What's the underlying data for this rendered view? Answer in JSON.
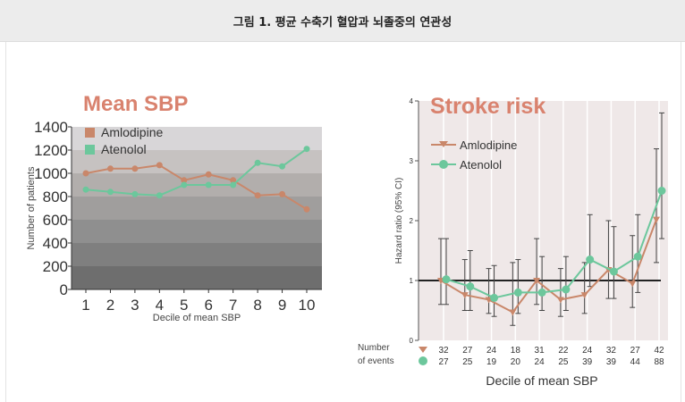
{
  "header": {
    "title": "그림 1. 평균 수축기 혈압과 뇌졸중의 연관성"
  },
  "colors": {
    "amlodipine": "#c9876a",
    "atenolol": "#6cc79c",
    "title": "#d9826e"
  },
  "chart_data": [
    {
      "type": "line",
      "title": "Mean SBP",
      "xlabel": "Decile of mean SBP",
      "ylabel": "Number of patients",
      "categories": [
        "1",
        "2",
        "3",
        "4",
        "5",
        "6",
        "7",
        "8",
        "9",
        "10"
      ],
      "ylim": [
        0,
        1400
      ],
      "yticks": [
        "0",
        "200",
        "400",
        "600",
        "800",
        "1000",
        "1200",
        "1400"
      ],
      "legend": "top-left",
      "series": [
        {
          "name": "Amlodipine",
          "values": [
            1000,
            1040,
            1040,
            1070,
            940,
            990,
            940,
            810,
            820,
            690
          ]
        },
        {
          "name": "Atenolol",
          "values": [
            860,
            840,
            820,
            810,
            900,
            900,
            900,
            1090,
            1060,
            1210
          ]
        }
      ]
    },
    {
      "type": "line",
      "title": "Stroke risk",
      "xlabel": "Decile of mean SBP",
      "ylabel": "Hazard ratio (95% CI)",
      "ylim": [
        0,
        4
      ],
      "yticks": [
        "0",
        "1",
        "2",
        "3",
        "4"
      ],
      "reference_line": 1,
      "legend": "top-left",
      "events_label": [
        "Number",
        "of events"
      ],
      "series": [
        {
          "name": "Amlodipine",
          "values": [
            1.0,
            0.76,
            0.68,
            0.47,
            1.0,
            0.68,
            0.76,
            1.18,
            0.95,
            2.02
          ],
          "ci": [
            [
              0.6,
              1.7
            ],
            [
              0.5,
              1.35
            ],
            [
              0.45,
              1.2
            ],
            [
              0.25,
              1.3
            ],
            [
              0.6,
              1.7
            ],
            [
              0.4,
              1.2
            ],
            [
              0.45,
              1.3
            ],
            [
              0.7,
              2.0
            ],
            [
              0.55,
              1.75
            ],
            [
              1.3,
              3.2
            ]
          ],
          "events": [
            "32",
            "27",
            "24",
            "18",
            "31",
            "22",
            "24",
            "32",
            "27",
            "42"
          ]
        },
        {
          "name": "Atenolol",
          "values": [
            1.02,
            0.9,
            0.71,
            0.8,
            0.8,
            0.85,
            1.35,
            1.15,
            1.4,
            2.5
          ],
          "ci": [
            [
              0.6,
              1.7
            ],
            [
              0.5,
              1.5
            ],
            [
              0.4,
              1.25
            ],
            [
              0.45,
              1.35
            ],
            [
              0.5,
              1.4
            ],
            [
              0.5,
              1.4
            ],
            [
              0.9,
              2.1
            ],
            [
              0.7,
              1.9
            ],
            [
              0.8,
              2.1
            ],
            [
              1.7,
              3.8
            ]
          ],
          "events": [
            "27",
            "25",
            "19",
            "20",
            "24",
            "25",
            "39",
            "39",
            "44",
            "88"
          ]
        }
      ]
    }
  ]
}
